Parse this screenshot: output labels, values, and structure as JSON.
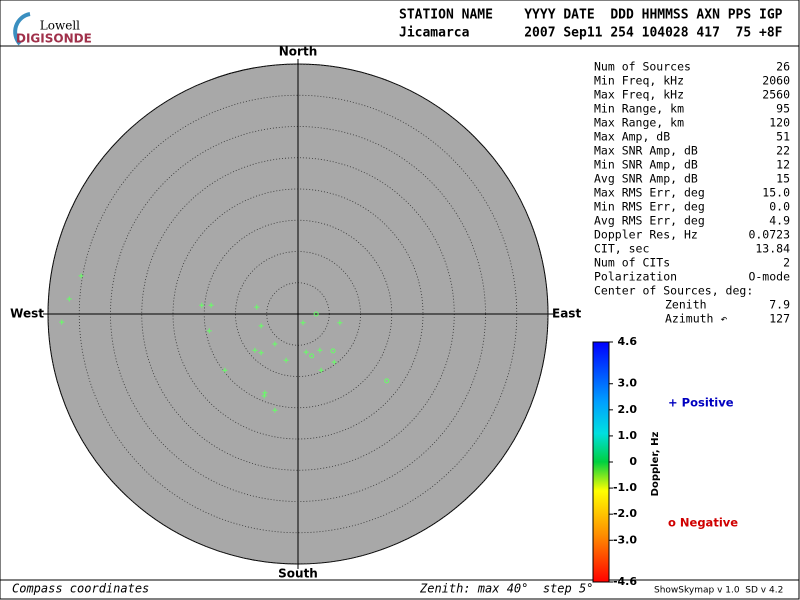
{
  "logo": {
    "top": "Lowell",
    "bottom": "DIGISONDE"
  },
  "header": {
    "line1": "STATION NAME    YYYY DATE  DDD HHMMSS AXN PPS IGP",
    "line2": "Jicamarca       2007 Sep11 254 104028 417  75 +8F"
  },
  "stats": {
    "rows": [
      [
        "Num of Sources",
        "26"
      ],
      [
        "Min Freq, kHz",
        "2060"
      ],
      [
        "Max Freq, kHz",
        "2560"
      ],
      [
        "Min Range, km",
        "95"
      ],
      [
        "Max Range, km",
        "120"
      ],
      [
        "Max Amp, dB",
        "51"
      ],
      [
        "Max SNR Amp, dB",
        "22"
      ],
      [
        "Min SNR Amp, dB",
        "12"
      ],
      [
        "Avg SNR Amp, dB",
        "15"
      ],
      [
        "Max RMS Err, deg",
        "15.0"
      ],
      [
        "Min RMS Err, deg",
        "0.0"
      ],
      [
        "Avg RMS Err, deg",
        "4.9"
      ],
      [
        "Doppler Res, Hz",
        "0.0723"
      ],
      [
        "CIT, sec",
        "13.84"
      ],
      [
        "Num of CITs",
        "2"
      ],
      [
        "Polarization",
        "O-mode"
      ]
    ],
    "center_title": "Center of Sources, deg:",
    "center_rows": [
      [
        "Zenith",
        "7.9"
      ],
      [
        "Azimuth ↶",
        "127"
      ]
    ]
  },
  "chart_data": {
    "type": "polar-scatter",
    "directions": {
      "north": "North",
      "south": "South",
      "east": "East",
      "west": "West"
    },
    "rlim": [
      0,
      40
    ],
    "rticks": [
      5,
      10,
      15,
      20,
      25,
      30,
      35,
      40
    ],
    "series": [
      {
        "name": "Sources",
        "color": "#66ff66",
        "x": [
          -34.7,
          -36.6,
          -37.8,
          -15.4,
          -13.9,
          -14.2,
          -6.6,
          -5.9,
          -3.7,
          -6.9,
          -5.9,
          -1.9,
          -11.7,
          -5.3,
          -5.4,
          -3.7,
          0.8,
          2.9,
          6.7,
          1.3,
          2.2,
          3.5,
          5.6,
          5.8,
          3.7,
          14.2
        ],
        "values": [
          6.1,
          2.4,
          -1.3,
          1.4,
          1.4,
          -2.7,
          1.1,
          -1.9,
          -4.8,
          -5.8,
          -6.2,
          -7.4,
          -9.0,
          -12.6,
          -13.1,
          -15.4,
          -1.4,
          0,
          -1.4,
          -6.1,
          -6.7,
          -5.8,
          -5.9,
          -7.7,
          -9.0,
          -10.7
        ],
        "markers": [
          "+",
          "+",
          "+",
          "+",
          "+",
          "+",
          "+",
          "+",
          "+",
          "+",
          "+",
          "+",
          "+",
          "+",
          "+",
          "+",
          "+",
          "o",
          "+",
          "+",
          "o",
          "+",
          "o",
          "+",
          "+",
          "o"
        ]
      }
    ]
  },
  "colorbar": {
    "label": "Doppler, Hz",
    "lim": [
      -4.6,
      4.6
    ],
    "ticks": [
      4.6,
      {
        "value": 3,
        "label": "3.0"
      },
      {
        "value": 2,
        "label": "2.0"
      },
      {
        "value": 1,
        "label": "1.0"
      },
      0,
      {
        "value": -1,
        "label": "-1.0"
      },
      {
        "value": -2,
        "label": "-2.0"
      },
      {
        "value": -3,
        "label": "-3.0"
      },
      -4.6
    ]
  },
  "legend": {
    "positive": "+ Positive",
    "negative": "o Negative"
  },
  "footer": {
    "left": "Compass coordinates",
    "middle": "Zenith: max 40°  step 5°",
    "right": "ShowSkymap v 1.0  SD v 4.2"
  }
}
